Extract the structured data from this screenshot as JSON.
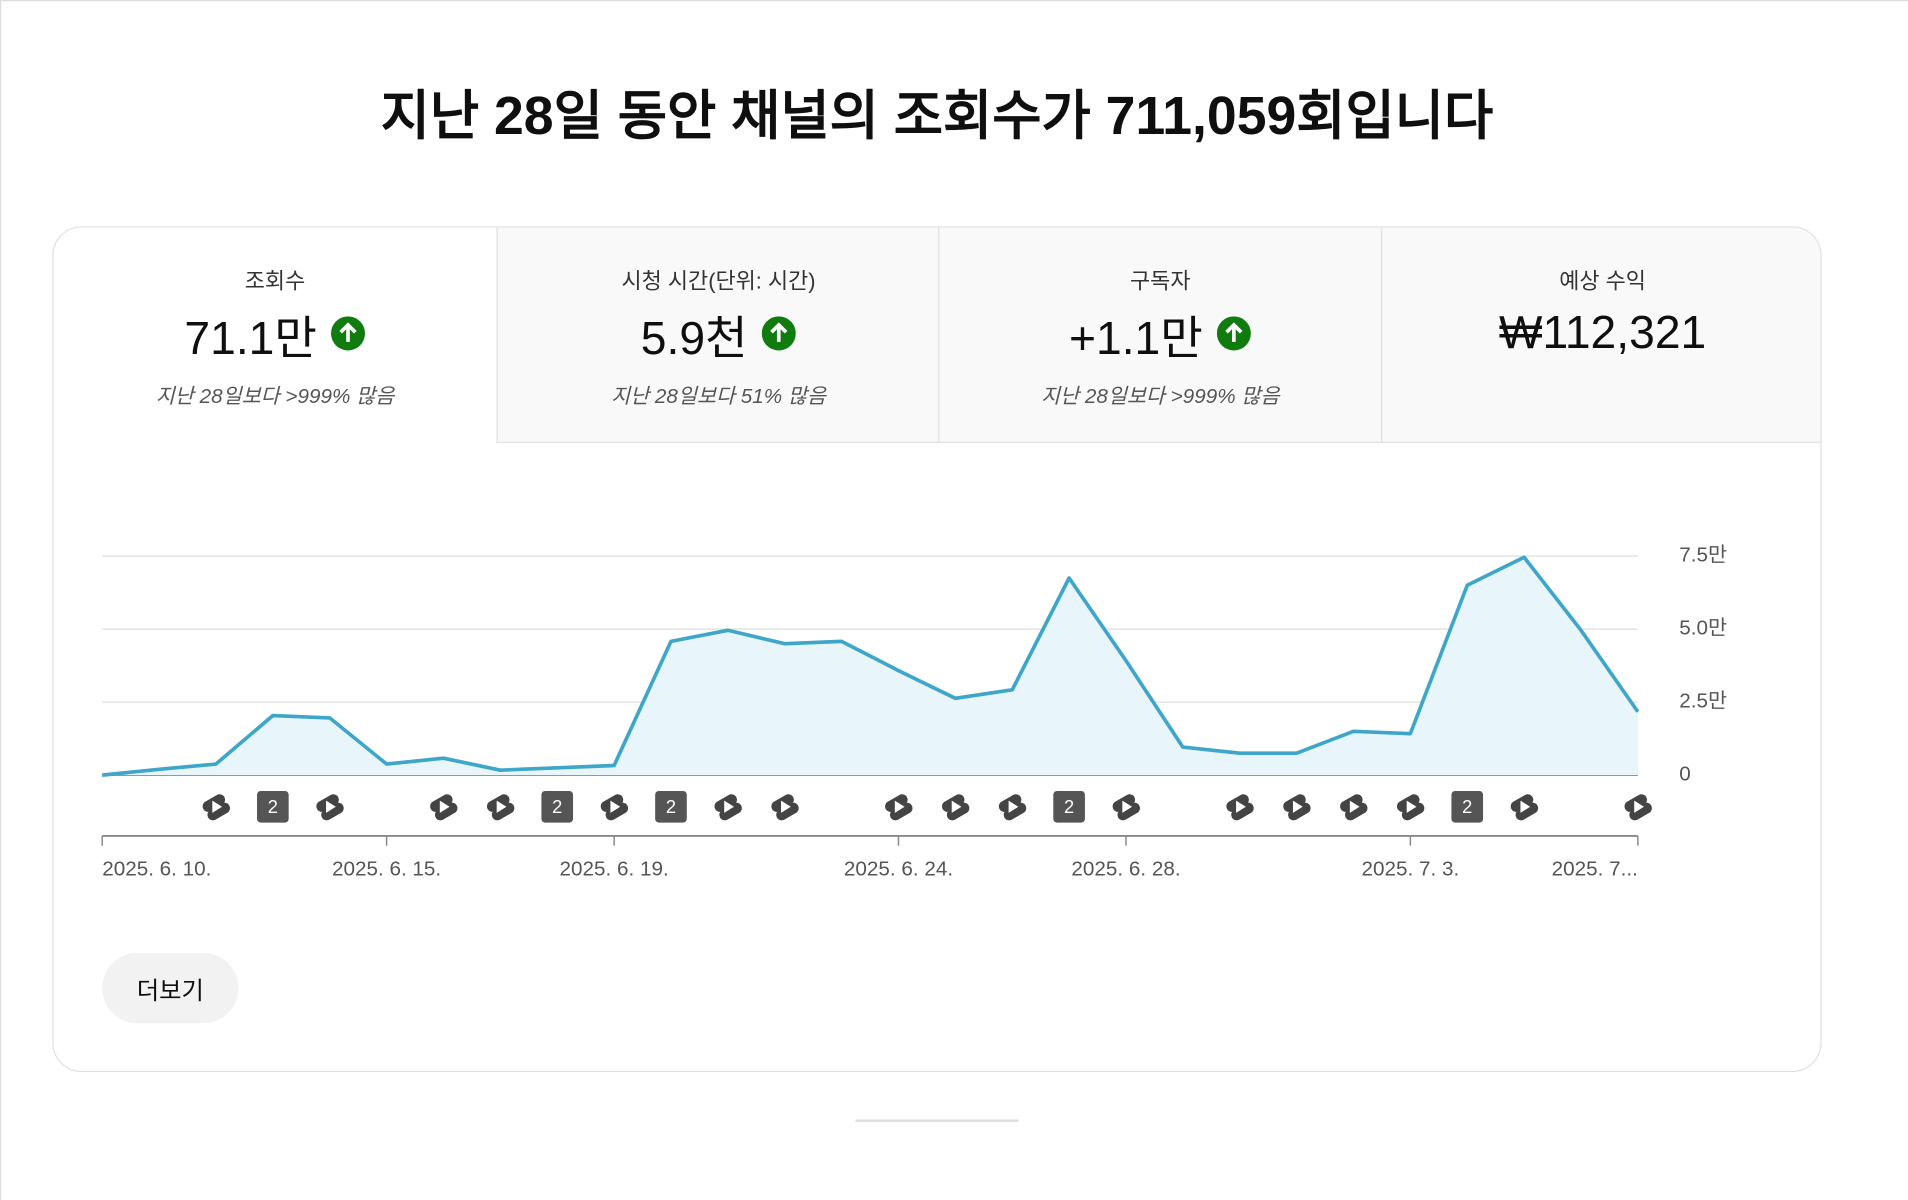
{
  "header": {
    "title": "지난 28일 동안 채널의 조회수가 711,059회입니다"
  },
  "metrics": [
    {
      "label": "조회수",
      "value": "71.1만",
      "comparison": "지난 28일보다 >999% 많음"
    },
    {
      "label": "시청 시간(단위: 시간)",
      "value": "5.9천",
      "comparison": "지난 28일보다 51% 많음"
    },
    {
      "label": "구독자",
      "value": "+1.1만",
      "comparison": "지난 28일보다 >999% 많음"
    },
    {
      "label": "예상 수익",
      "value": "₩112,321"
    }
  ],
  "chart_data": {
    "type": "area",
    "color": "#3ea6c8",
    "categories": [
      "2025. 6. 10.",
      null,
      null,
      null,
      null,
      "2025. 6. 15.",
      null,
      null,
      null,
      "2025. 6. 19.",
      null,
      null,
      null,
      null,
      "2025. 6. 24.",
      null,
      null,
      null,
      "2025. 6. 28.",
      null,
      null,
      null,
      null,
      "2025. 7. 3.",
      null,
      null,
      null,
      "2025. 7..."
    ],
    "values": [
      0,
      2000,
      3800,
      20400,
      19600,
      3800,
      5800,
      1700,
      2500,
      3300,
      45800,
      49600,
      45000,
      45800,
      35800,
      26300,
      29200,
      67500,
      39200,
      9600,
      7500,
      7500,
      15000,
      14200,
      65000,
      74600,
      49600,
      21700
    ],
    "uploads": [
      null,
      null,
      1,
      2,
      1,
      null,
      1,
      1,
      2,
      1,
      2,
      1,
      1,
      null,
      1,
      1,
      1,
      2,
      1,
      null,
      1,
      1,
      1,
      1,
      2,
      1,
      null,
      1
    ],
    "ylim": [
      0,
      75000
    ],
    "yticks": [
      0,
      {
        "value": 25000,
        "label": "2.5만"
      },
      {
        "value": 50000,
        "label": "5.0만"
      },
      {
        "value": 75000,
        "label": "7.5만"
      }
    ],
    "grid": true
  },
  "button": "더보기"
}
